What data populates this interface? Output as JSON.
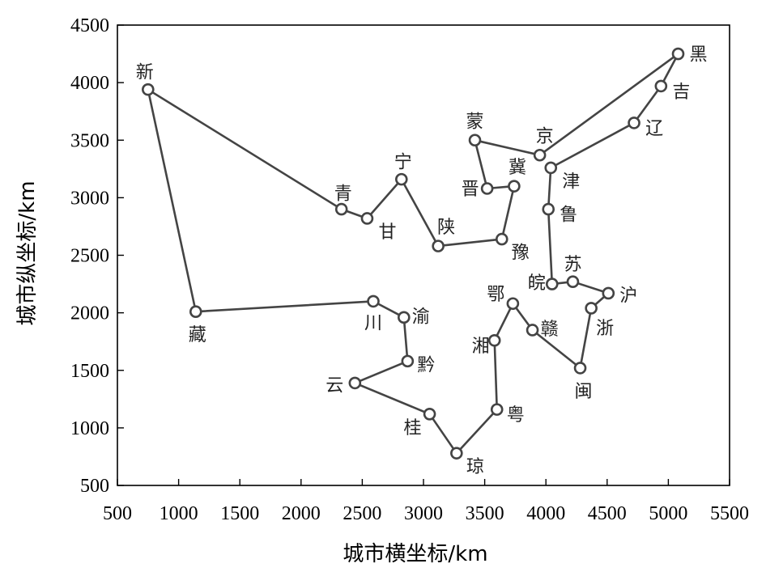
{
  "chart_data": {
    "type": "line",
    "title": "",
    "xlabel": "城市横坐标/km",
    "ylabel": "城市纵坐标/km",
    "xlim": [
      500,
      5500
    ],
    "ylim": [
      500,
      4500
    ],
    "xticks": [
      500,
      1000,
      1500,
      2000,
      2500,
      3000,
      3500,
      4000,
      4500,
      5000,
      5500
    ],
    "yticks": [
      500,
      1000,
      1500,
      2000,
      2500,
      3000,
      3500,
      4000,
      4500
    ],
    "grid": false,
    "closed_route": true,
    "points": [
      {
        "name": "新",
        "x": 750,
        "y": 3940
      },
      {
        "name": "青",
        "x": 2330,
        "y": 2900
      },
      {
        "name": "甘",
        "x": 2540,
        "y": 2820
      },
      {
        "name": "宁",
        "x": 2820,
        "y": 3160
      },
      {
        "name": "陕",
        "x": 3120,
        "y": 2580
      },
      {
        "name": "豫",
        "x": 3640,
        "y": 2640
      },
      {
        "name": "冀",
        "x": 3740,
        "y": 3100
      },
      {
        "name": "晋",
        "x": 3520,
        "y": 3080
      },
      {
        "name": "蒙",
        "x": 3420,
        "y": 3500
      },
      {
        "name": "京",
        "x": 3950,
        "y": 3370
      },
      {
        "name": "黑",
        "x": 5080,
        "y": 4250
      },
      {
        "name": "吉",
        "x": 4940,
        "y": 3970
      },
      {
        "name": "辽",
        "x": 4720,
        "y": 3650
      },
      {
        "name": "津",
        "x": 4040,
        "y": 3260
      },
      {
        "name": "鲁",
        "x": 4020,
        "y": 2900
      },
      {
        "name": "皖",
        "x": 4050,
        "y": 2250
      },
      {
        "name": "苏",
        "x": 4220,
        "y": 2270
      },
      {
        "name": "沪",
        "x": 4510,
        "y": 2170
      },
      {
        "name": "浙",
        "x": 4370,
        "y": 2040
      },
      {
        "name": "闽",
        "x": 4280,
        "y": 1520
      },
      {
        "name": "赣",
        "x": 3890,
        "y": 1850
      },
      {
        "name": "鄂",
        "x": 3730,
        "y": 2080
      },
      {
        "name": "湘",
        "x": 3580,
        "y": 1760
      },
      {
        "name": "粤",
        "x": 3600,
        "y": 1160
      },
      {
        "name": "琼",
        "x": 3270,
        "y": 780
      },
      {
        "name": "桂",
        "x": 3050,
        "y": 1120
      },
      {
        "name": "云",
        "x": 2440,
        "y": 1390
      },
      {
        "name": "黔",
        "x": 2870,
        "y": 1580
      },
      {
        "name": "渝",
        "x": 2840,
        "y": 1960
      },
      {
        "name": "川",
        "x": 2590,
        "y": 2100
      },
      {
        "name": "藏",
        "x": 1140,
        "y": 2010
      }
    ]
  }
}
